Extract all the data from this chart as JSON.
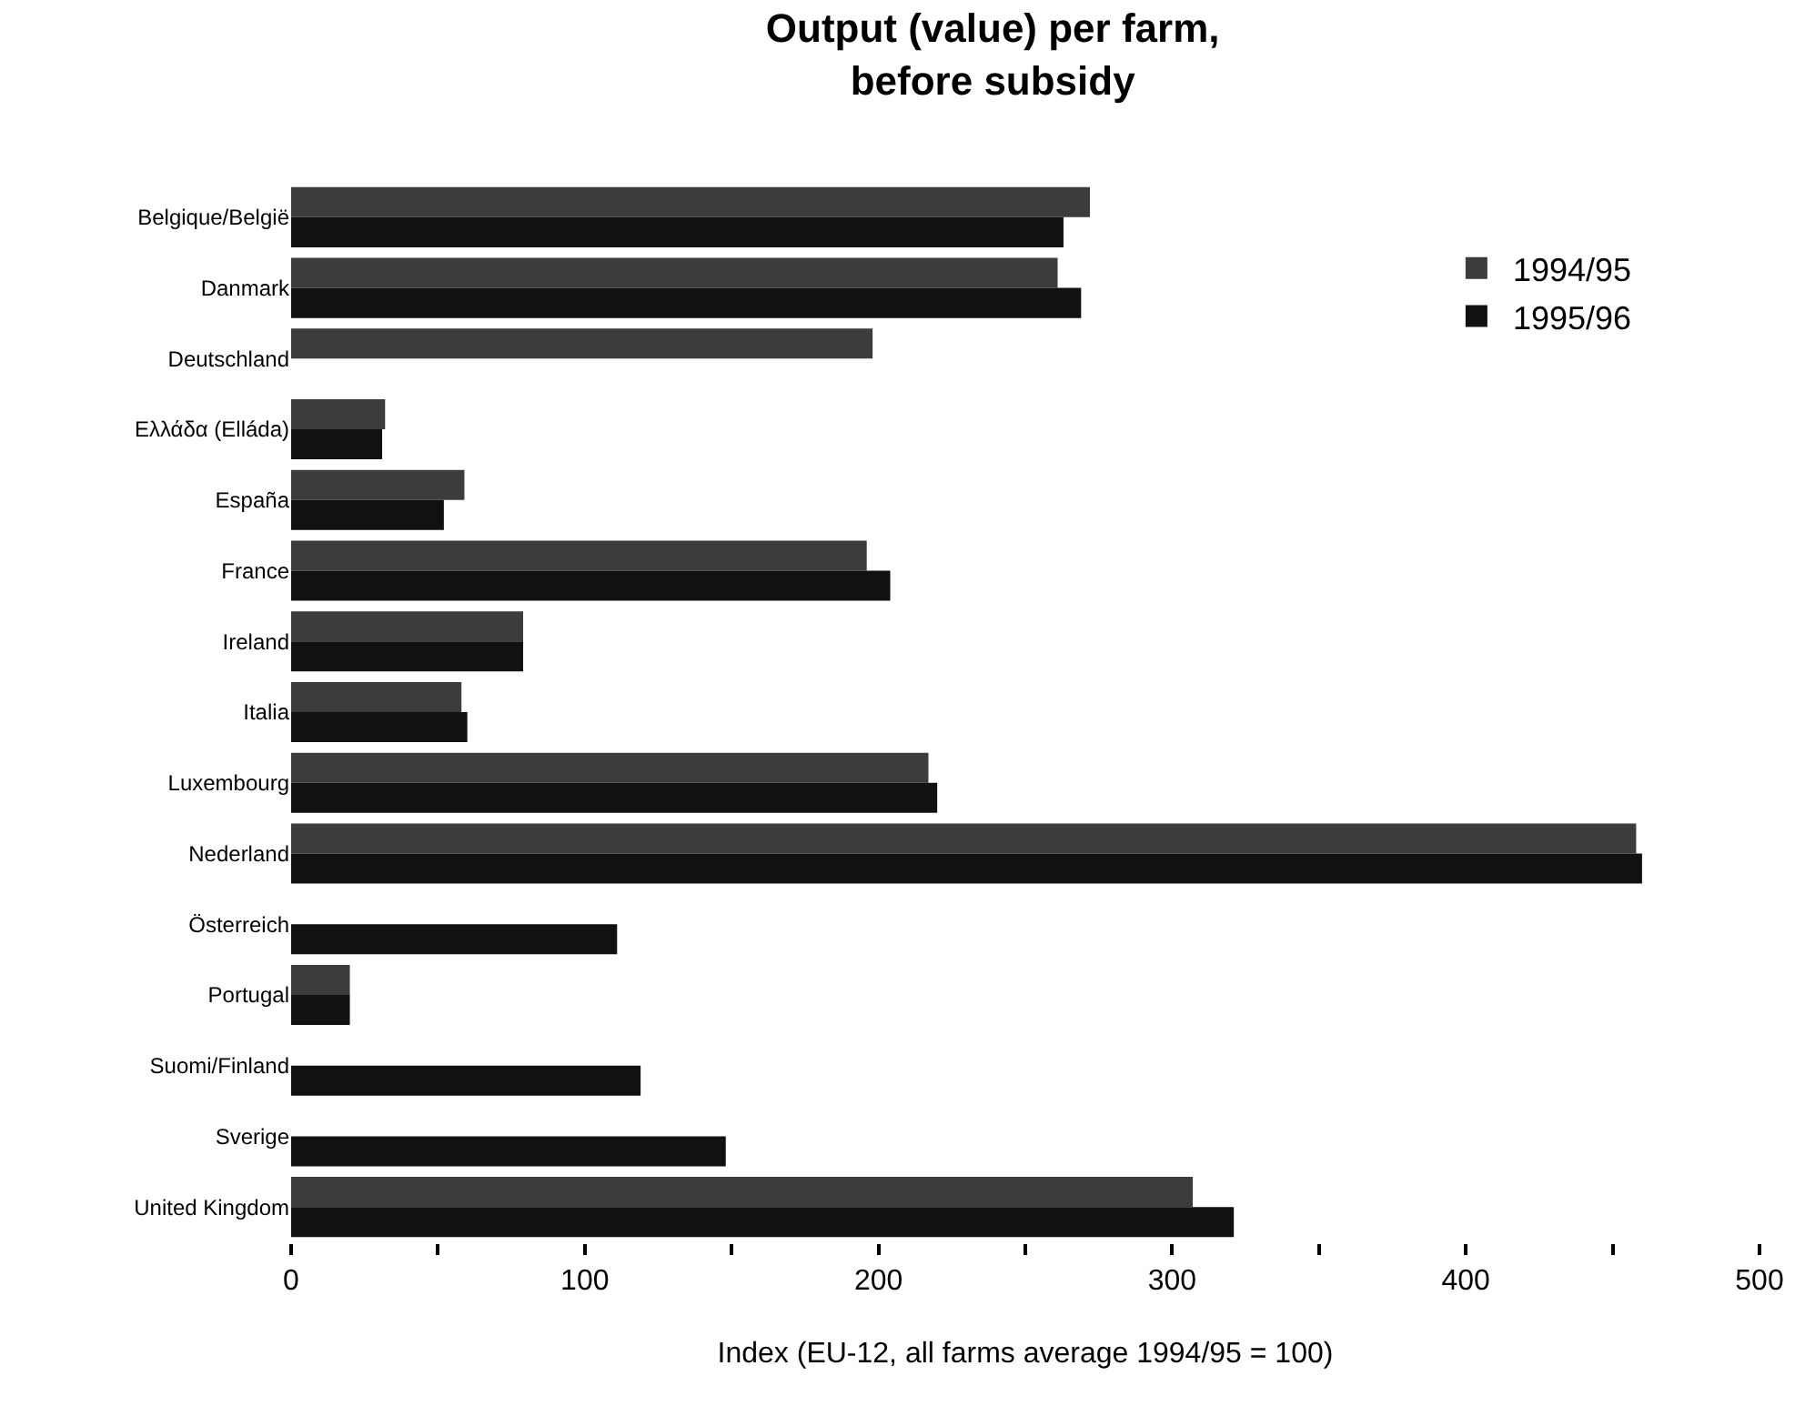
{
  "chart_data": {
    "type": "bar",
    "orientation": "horizontal",
    "title": "Output (value) per farm,\nbefore subsidy",
    "xlabel": "Index (EU-12, all farms average 1994/95 = 100)",
    "categories": [
      "Belgique/België",
      "Danmark",
      "Deutschland",
      "Ελλάδα (Elláda)",
      "España",
      "France",
      "Ireland",
      "Italia",
      "Luxembourg",
      "Nederland",
      "Österreich",
      "Portugal",
      "Suomi/Finland",
      "Sverige",
      "United Kingdom"
    ],
    "series": [
      {
        "name": "1994/95",
        "color": "#3c3c3c",
        "values": [
          272,
          261,
          198,
          32,
          59,
          196,
          79,
          58,
          217,
          458,
          null,
          20,
          null,
          null,
          307
        ]
      },
      {
        "name": "1995/96",
        "color": "#111111",
        "values": [
          263,
          269,
          null,
          31,
          52,
          204,
          79,
          60,
          220,
          460,
          111,
          20,
          119,
          148,
          321
        ]
      }
    ],
    "xlim": [
      0,
      500
    ],
    "xticks": [
      0,
      {
        "value": 50,
        "label": null
      },
      100,
      {
        "value": 150,
        "label": null
      },
      200,
      {
        "value": 250,
        "label": null
      },
      300,
      {
        "value": 350,
        "label": null
      },
      400,
      {
        "value": 450,
        "label": null
      },
      500
    ],
    "grid": false,
    "legend": "top right"
  }
}
